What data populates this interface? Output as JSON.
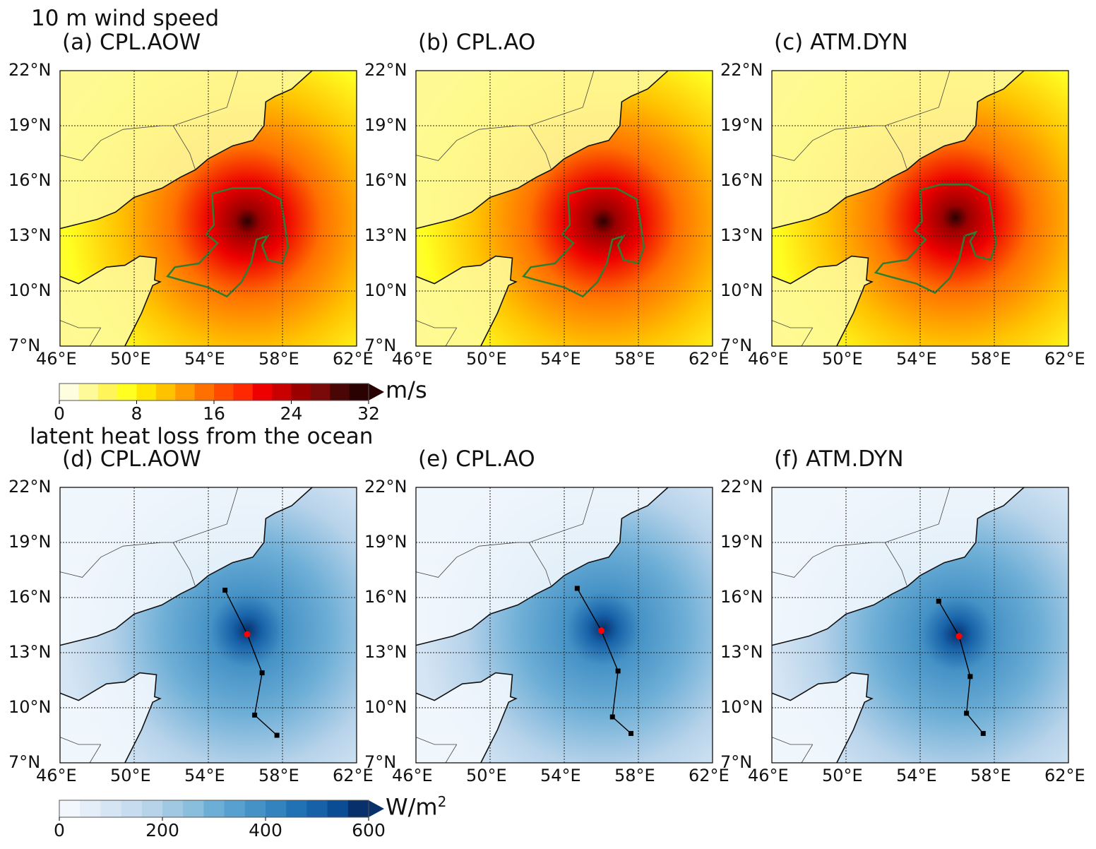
{
  "rows": [
    {
      "title": "10 m wind speed",
      "unit": "m/s",
      "unit_sup": "",
      "cbar_ticks": [
        "0",
        "8",
        "16",
        "24",
        "32"
      ],
      "cbar_colors": [
        "#fffde0",
        "#fffa99",
        "#fff55a",
        "#ffff22",
        "#ffe600",
        "#ffc200",
        "#ff9a00",
        "#ff7000",
        "#ff4a00",
        "#ff2800",
        "#ee0000",
        "#c80000",
        "#9a0000",
        "#7a0a0a",
        "#4a0505",
        "#2a0202"
      ],
      "panels": [
        {
          "label": "(a) CPL.AOW",
          "center": [
            56.1,
            13.8
          ]
        },
        {
          "label": "(b) CPL.AO",
          "center": [
            56.1,
            13.8
          ]
        },
        {
          "label": "(c) ATM.DYN",
          "center": [
            55.9,
            14.0
          ]
        }
      ]
    },
    {
      "title": "latent heat loss from the ocean",
      "unit": "W/m",
      "unit_sup": "2",
      "cbar_ticks": [
        "0",
        "200",
        "400",
        "600"
      ],
      "cbar_colors": [
        "#f2f7fd",
        "#e3eef9",
        "#d5e5f4",
        "#c8dcef",
        "#b7d3ea",
        "#a1c8e3",
        "#89bedc",
        "#6daed6",
        "#58a0cf",
        "#4592c6",
        "#3383be",
        "#2171b5",
        "#1761a8",
        "#0b4d94",
        "#08306b"
      ],
      "panels": [
        {
          "label": "(d) CPL.AOW",
          "center": [
            56.1,
            14.2
          ],
          "track": [
            [
              54.9,
              16.4
            ],
            [
              56.1,
              14.0
            ],
            [
              56.9,
              11.9
            ],
            [
              56.5,
              9.6
            ],
            [
              57.7,
              8.5
            ]
          ]
        },
        {
          "label": "(e) CPL.AO",
          "center": [
            56.1,
            14.3
          ],
          "track": [
            [
              54.7,
              16.5
            ],
            [
              56.0,
              14.2
            ],
            [
              56.9,
              12.0
            ],
            [
              56.6,
              9.5
            ],
            [
              57.6,
              8.6
            ]
          ]
        },
        {
          "label": "(f) ATM.DYN",
          "center": [
            56.0,
            14.0
          ],
          "track": [
            [
              55.0,
              15.8
            ],
            [
              56.1,
              13.9
            ],
            [
              56.7,
              11.7
            ],
            [
              56.5,
              9.7
            ],
            [
              57.4,
              8.6
            ]
          ]
        }
      ]
    }
  ],
  "lon_ticks": [
    "46°E",
    "50°E",
    "54°E",
    "58°E",
    "62°E"
  ],
  "lat_ticks": [
    "7°N",
    "10°N",
    "13°N",
    "16°N",
    "19°N",
    "22°N"
  ]
}
